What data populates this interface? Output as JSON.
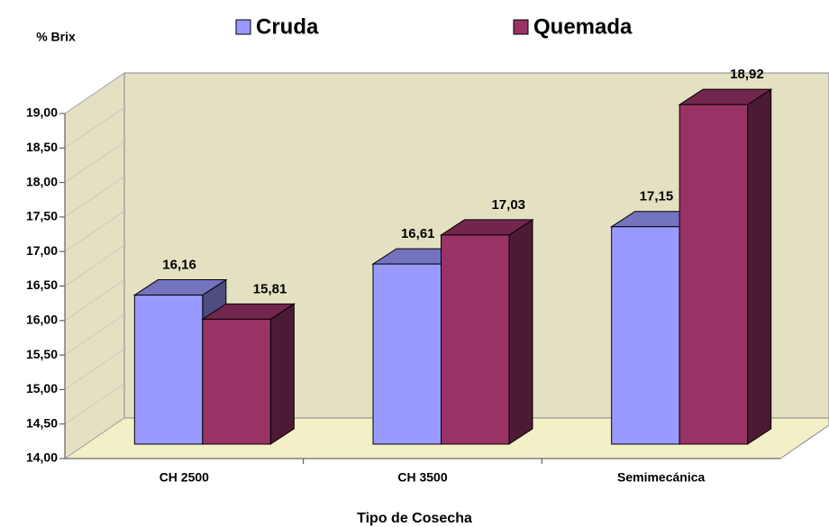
{
  "chart_data": {
    "type": "bar3d",
    "y_label": "% Brix",
    "x_label": "Tipo de Cosecha",
    "categories": [
      "CH 2500",
      "CH 3500",
      "Semimecánica"
    ],
    "series": [
      {
        "name": "Cruda",
        "color": "#9999ff",
        "values": [
          16.16,
          16.61,
          17.15
        ],
        "value_labels": [
          "16,16",
          "16,61",
          "17,15"
        ]
      },
      {
        "name": "Quemada",
        "color": "#993366",
        "values": [
          15.81,
          17.03,
          18.92
        ],
        "value_labels": [
          "15,81",
          "17,03",
          "18,92"
        ]
      }
    ],
    "ylim": [
      14,
      19
    ],
    "yticks": [
      {
        "value": 14,
        "label": "14,00"
      },
      {
        "value": 14.5,
        "label": "14,50"
      },
      {
        "value": 15,
        "label": "15,00"
      },
      {
        "value": 15.5,
        "label": "15,50"
      },
      {
        "value": 16,
        "label": "16,00"
      },
      {
        "value": 16.5,
        "label": "16,50"
      },
      {
        "value": 17,
        "label": "17,00"
      },
      {
        "value": 17.5,
        "label": "17,50"
      },
      {
        "value": 18,
        "label": "18,00"
      },
      {
        "value": 18.5,
        "label": "18,50"
      },
      {
        "value": 19,
        "label": "19,00"
      }
    ]
  }
}
